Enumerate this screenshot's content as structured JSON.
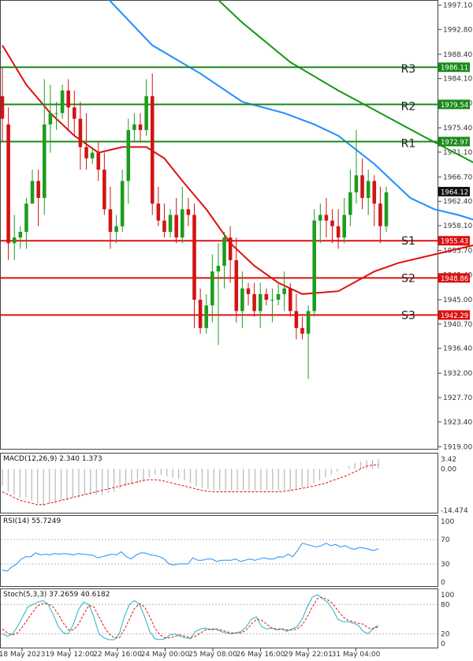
{
  "chart_data": [
    {
      "type": "candlestick",
      "price_axis": {
        "ticks": [
          "1997.10",
          "1992.80",
          "1988.40",
          "1984.10",
          "1979.80",
          "1975.40",
          "1971.10",
          "1966.70",
          "1962.40",
          "1958.10",
          "1953.70",
          "1949.40",
          "1945.00",
          "1940.70",
          "1936.40",
          "1932.00",
          "1927.70",
          "1923.40",
          "1919.00"
        ],
        "range": [
          1918.5,
          1998.0
        ]
      },
      "time_axis": {
        "labels": [
          "18 May 2023",
          "19 May 12:00",
          "22 May 16:00",
          "24 May 00:00",
          "25 May 08:00",
          "26 May 16:00",
          "29 May 22:01",
          "31 May 04:00"
        ]
      },
      "levels": [
        {
          "name": "R3",
          "value": 1986.11,
          "label": "1986.11",
          "color": "#1a8a1a"
        },
        {
          "name": "R2",
          "value": 1979.54,
          "label": "1979.54",
          "color": "#1a8a1a"
        },
        {
          "name": "R1",
          "value": 1972.97,
          "label": "1972.97",
          "color": "#1a8a1a"
        },
        {
          "name": "S1",
          "value": 1955.43,
          "label": "1955.43",
          "color": "#dd1111"
        },
        {
          "name": "S2",
          "value": 1948.86,
          "label": "1948.86",
          "color": "#dd1111"
        },
        {
          "name": "S3",
          "value": 1942.29,
          "label": "1942.29",
          "color": "#dd1111"
        }
      ],
      "current_price": {
        "value": 1964.12,
        "label": "1964.12"
      },
      "candles": [
        [
          1981,
          1977,
          1986,
          1973
        ],
        [
          1976,
          1955,
          1979,
          1952
        ],
        [
          1955,
          1956,
          1960,
          1952
        ],
        [
          1956,
          1957,
          1958,
          1954
        ],
        [
          1957,
          1962,
          1963,
          1954
        ],
        [
          1962,
          1966,
          1968,
          1962
        ],
        [
          1966,
          1963,
          1968,
          1958
        ],
        [
          1963,
          1976,
          1984,
          1960
        ],
        [
          1976,
          1978,
          1983,
          1971
        ],
        [
          1978,
          1978,
          1980,
          1975
        ],
        [
          1978,
          1982,
          1983,
          1977
        ],
        [
          1982,
          1979,
          1984,
          1975
        ],
        [
          1979,
          1977,
          1982,
          1974
        ],
        [
          1977,
          1972,
          1980,
          1968
        ],
        [
          1972,
          1970,
          1978,
          1968
        ],
        [
          1970,
          1971,
          1972,
          1969
        ],
        [
          1971,
          1968,
          1973,
          1966
        ],
        [
          1968,
          1961,
          1971,
          1960
        ],
        [
          1961,
          1957,
          1965,
          1954
        ],
        [
          1957,
          1958,
          1960,
          1955
        ],
        [
          1958,
          1966,
          1968,
          1957
        ],
        [
          1966,
          1975,
          1977,
          1962
        ],
        [
          1975,
          1976,
          1978,
          1973
        ],
        [
          1976,
          1975,
          1978,
          1973
        ],
        [
          1975,
          1981,
          1984,
          1974
        ],
        [
          1981,
          1962,
          1985,
          1960
        ],
        [
          1962,
          1959,
          1965,
          1958
        ],
        [
          1959,
          1957,
          1962,
          1956
        ],
        [
          1957,
          1960,
          1961,
          1956
        ],
        [
          1960,
          1956,
          1963,
          1955
        ],
        [
          1956,
          1961,
          1965,
          1955
        ],
        [
          1961,
          1960,
          1963,
          1958
        ],
        [
          1960,
          1945,
          1962,
          1940
        ],
        [
          1945,
          1940,
          1947,
          1939
        ],
        [
          1940,
          1944,
          1946,
          1939
        ],
        [
          1944,
          1950,
          1953,
          1941
        ],
        [
          1950,
          1951,
          1955,
          1937
        ],
        [
          1951,
          1956,
          1957,
          1947
        ],
        [
          1956,
          1952,
          1958,
          1948
        ],
        [
          1952,
          1943,
          1956,
          1941
        ],
        [
          1943,
          1947,
          1950,
          1940
        ],
        [
          1947,
          1946,
          1948,
          1944
        ],
        [
          1946,
          1943,
          1948,
          1942
        ],
        [
          1943,
          1946,
          1948,
          1940
        ],
        [
          1946,
          1945,
          1947,
          1944
        ],
        [
          1945,
          1945,
          1947,
          1941
        ],
        [
          1945,
          1946,
          1948,
          1944
        ],
        [
          1946,
          1947,
          1950,
          1943
        ],
        [
          1947,
          1943,
          1948,
          1942
        ],
        [
          1943,
          1940,
          1946,
          1938
        ],
        [
          1940,
          1939,
          1942,
          1938
        ],
        [
          1939,
          1943,
          1944,
          1931
        ],
        [
          1943,
          1959,
          1961,
          1942
        ],
        [
          1959,
          1960,
          1962,
          1955
        ],
        [
          1960,
          1959,
          1963,
          1956
        ],
        [
          1959,
          1958,
          1961,
          1955
        ],
        [
          1958,
          1956,
          1961,
          1954
        ],
        [
          1956,
          1960,
          1963,
          1955
        ],
        [
          1960,
          1964,
          1968,
          1958
        ],
        [
          1964,
          1967,
          1975,
          1962
        ],
        [
          1967,
          1963,
          1970,
          1961
        ],
        [
          1963,
          1966,
          1968,
          1960
        ],
        [
          1966,
          1962,
          1967,
          1958
        ],
        [
          1962,
          1958,
          1965,
          1955
        ],
        [
          1958,
          1964,
          1965,
          1957
        ]
      ],
      "moving_averages": [
        {
          "color": "#1e8fff",
          "points": [
            [
              16,
              2000
            ],
            [
              25,
              1990
            ],
            [
              33,
              1985
            ],
            [
              40,
              1980
            ],
            [
              47,
              1978
            ],
            [
              52,
              1976
            ],
            [
              56,
              1974
            ],
            [
              62,
              1969
            ],
            [
              65,
              1966
            ],
            [
              68,
              1963
            ],
            [
              72,
              1961
            ],
            [
              76,
              1960
            ],
            [
              79,
              1959
            ],
            [
              84,
              1957.5
            ],
            [
              89,
              1956
            ]
          ]
        },
        {
          "color": "#dd1111",
          "points": [
            [
              0,
              1990
            ],
            [
              4,
              1983
            ],
            [
              8,
              1978
            ],
            [
              12,
              1974
            ],
            [
              16,
              1971
            ],
            [
              20,
              1972
            ],
            [
              24,
              1972
            ],
            [
              27,
              1970
            ],
            [
              30,
              1966
            ],
            [
              34,
              1961
            ],
            [
              38,
              1955
            ],
            [
              42,
              1951
            ],
            [
              46,
              1948
            ],
            [
              50,
              1946
            ],
            [
              56,
              1946.5
            ],
            [
              62,
              1950
            ],
            [
              66,
              1951.5
            ],
            [
              72,
              1953
            ],
            [
              80,
              1955
            ],
            [
              89,
              1957
            ]
          ]
        },
        {
          "color": "#139913",
          "points": [
            [
              30,
              2004
            ],
            [
              40,
              1994
            ],
            [
              48,
              1987
            ],
            [
              56,
              1982
            ],
            [
              63,
              1978
            ],
            [
              70,
              1974
            ],
            [
              79,
              1969
            ]
          ]
        }
      ]
    },
    {
      "type": "macd",
      "title": "MACD(12,26,9) 2.340 1.373",
      "ticks": [
        "3.42",
        "0.00",
        "-14.474"
      ],
      "range": [
        -14.474,
        3.42
      ],
      "histogram": [
        -6,
        -8,
        -9,
        -10,
        -10,
        -11,
        -12,
        -13,
        -12,
        -12,
        -11,
        -11,
        -10,
        -10,
        -9,
        -9,
        -9,
        -9,
        -8.5,
        -8,
        -7,
        -6,
        -5.5,
        -5,
        -4.5,
        -3,
        -2,
        -2,
        -2.5,
        -3,
        -3.5,
        -4,
        -5,
        -6,
        -6.5,
        -7,
        -7.5,
        -7.5,
        -7.5,
        -7.5,
        -7.5,
        -7.5,
        -7.5,
        -7.5,
        -7.5,
        -7.5,
        -7.5,
        -7.5,
        -7.5,
        -7.5,
        -7,
        -6.5,
        -6,
        -5,
        -4,
        -3,
        -2,
        -1,
        0,
        1,
        2,
        2.5,
        3,
        3.2,
        3.4
      ],
      "signal": [
        -8,
        -9,
        -10,
        -11,
        -11.5,
        -12,
        -12.5,
        -12.5,
        -12,
        -11.5,
        -11,
        -10.5,
        -10,
        -9.5,
        -9,
        -8.5,
        -8,
        -7.5,
        -7,
        -6.5,
        -6,
        -5.5,
        -5,
        -4.5,
        -4,
        -3.8,
        -3.8,
        -4,
        -4.5,
        -5,
        -5.5,
        -6,
        -6.5,
        -7,
        -7.5,
        -7.8,
        -8,
        -8,
        -8,
        -8,
        -8,
        -8,
        -8,
        -8,
        -8,
        -8,
        -8,
        -8,
        -7.8,
        -7.5,
        -7.2,
        -6.8,
        -6.4,
        -6,
        -5.5,
        -5,
        -4.2,
        -3.5,
        -2.8,
        -2,
        -1,
        0,
        1,
        1.3,
        1.4
      ]
    },
    {
      "type": "rsi",
      "title": "RSI(14) 55.7249",
      "ticks": [
        "100",
        "70",
        "30",
        "0"
      ],
      "range": [
        0,
        100
      ],
      "values": [
        20,
        18,
        25,
        30,
        38,
        42,
        42,
        48,
        45,
        46,
        45,
        47,
        46,
        47,
        46,
        45,
        47,
        46,
        45,
        44,
        40,
        42,
        44,
        46,
        45,
        50,
        42,
        38,
        44,
        48,
        48,
        45,
        44,
        42,
        38,
        30,
        28,
        30,
        30,
        30,
        40,
        36,
        36,
        38,
        38,
        34,
        36,
        36,
        36,
        38,
        34,
        36,
        38,
        36,
        38,
        40,
        38,
        38,
        42,
        41,
        46,
        42,
        52,
        64,
        62,
        60,
        58,
        60,
        64,
        60,
        62,
        58,
        60,
        56,
        54,
        57,
        56,
        54,
        52,
        55
      ]
    },
    {
      "type": "stochastic",
      "title": "Stoch(5,3,3) 37.2659 40.6182",
      "ticks": [
        "100",
        "80",
        "20",
        "0"
      ],
      "range": [
        0,
        100
      ],
      "k": [
        20,
        15,
        20,
        35,
        55,
        75,
        80,
        85,
        88,
        80,
        60,
        35,
        22,
        20,
        40,
        70,
        85,
        80,
        55,
        20,
        12,
        8,
        8,
        20,
        55,
        80,
        88,
        80,
        55,
        25,
        10,
        8,
        10,
        18,
        20,
        15,
        12,
        10,
        25,
        30,
        32,
        28,
        30,
        25,
        22,
        20,
        22,
        25,
        35,
        50,
        55,
        35,
        30,
        32,
        28,
        30,
        25,
        30,
        35,
        50,
        75,
        95,
        100,
        92,
        85,
        70,
        50,
        45,
        45,
        42,
        38,
        25,
        20,
        32,
        37
      ],
      "d": [
        30,
        22,
        18,
        22,
        35,
        50,
        65,
        78,
        82,
        82,
        75,
        60,
        42,
        28,
        28,
        40,
        60,
        78,
        75,
        55,
        35,
        20,
        12,
        12,
        28,
        50,
        72,
        82,
        75,
        55,
        32,
        18,
        12,
        12,
        15,
        18,
        15,
        12,
        15,
        22,
        28,
        30,
        30,
        28,
        25,
        22,
        22,
        22,
        28,
        40,
        50,
        48,
        40,
        32,
        30,
        30,
        28,
        28,
        30,
        38,
        55,
        75,
        92,
        95,
        90,
        82,
        68,
        55,
        48,
        45,
        42,
        40,
        32,
        30,
        35
      ]
    }
  ]
}
